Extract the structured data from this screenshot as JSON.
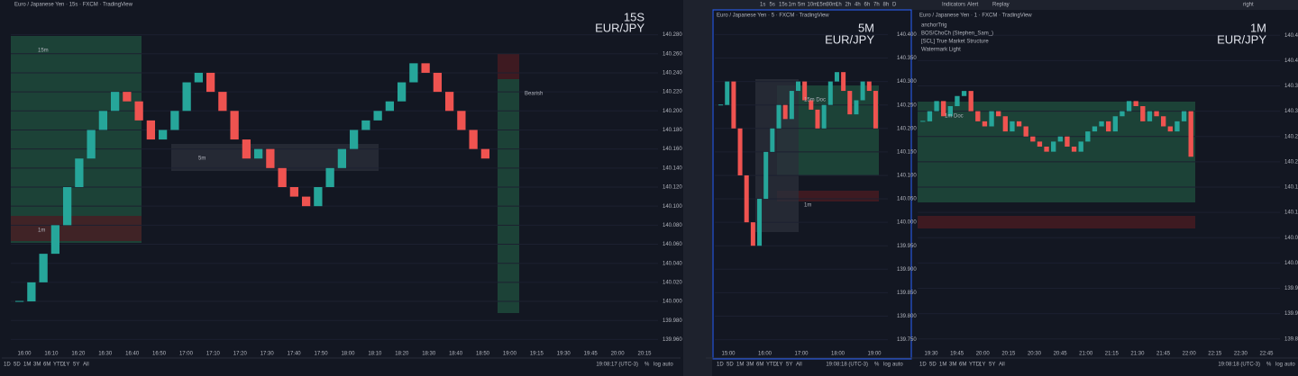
{
  "panes": [
    {
      "title": "Euro / Japanese Yen · 15s · FXCM · TradingView",
      "watermark_tf": "15S",
      "watermark_symbol": "EUR/JPY",
      "ylim": [
        139.95,
        140.29
      ],
      "price_ticks": [
        {
          "value": 140.28,
          "label": "140.280"
        },
        {
          "value": 140.26,
          "label": "140.260"
        },
        {
          "value": 140.24,
          "label": "140.240"
        },
        {
          "value": 140.22,
          "label": "140.220"
        },
        {
          "value": 140.2,
          "label": "140.200"
        },
        {
          "value": 140.18,
          "label": "140.180"
        },
        {
          "value": 140.16,
          "label": "140.160"
        },
        {
          "value": 140.14,
          "label": "140.140"
        },
        {
          "value": 140.12,
          "label": "140.120"
        },
        {
          "value": 140.1,
          "label": "140.100"
        },
        {
          "value": 140.08,
          "label": "140.080"
        },
        {
          "value": 140.06,
          "label": "140.060"
        },
        {
          "value": 140.04,
          "label": "140.040"
        },
        {
          "value": 140.02,
          "label": "140.020"
        },
        {
          "value": 140,
          "label": "140.000"
        },
        {
          "value": 139.98,
          "label": "139.980"
        },
        {
          "value": 139.96,
          "label": "139.960"
        }
      ],
      "time_labels": [
        "16:00",
        "16:10",
        "16:20",
        "16:30",
        "16:40",
        "16:50",
        "17:00",
        "17:10",
        "17:20",
        "17:30",
        "17:40",
        "17:50",
        "18:00",
        "18:10",
        "18:20",
        "18:30",
        "18:40",
        "18:50",
        "19:00",
        "19:15",
        "19:30",
        "19:45",
        "20:00",
        "20:15"
      ],
      "closes": [
        140.0,
        140.02,
        140.05,
        140.08,
        140.12,
        140.15,
        140.18,
        140.2,
        140.22,
        140.21,
        140.19,
        140.17,
        140.18,
        140.2,
        140.23,
        140.24,
        140.22,
        140.2,
        140.17,
        140.15,
        140.16,
        140.14,
        140.12,
        140.11,
        140.1,
        140.12,
        140.14,
        140.16,
        140.18,
        140.19,
        140.2,
        140.21,
        140.23,
        140.25,
        140.24,
        140.22,
        140.2,
        140.18,
        140.16,
        140.15
      ],
      "clock": "19:08:17 (UTC-3)",
      "zone_labels": [
        "15m",
        "1m",
        "5m",
        "Bearish"
      ]
    },
    {
      "title": "Euro / Japanese Yen · 5 · FXCM · TradingView",
      "watermark_tf": "5M",
      "watermark_symbol": "EUR/JPY",
      "ylim": [
        139.73,
        140.42
      ],
      "price_ticks": [
        {
          "value": 140.4,
          "label": "140.400"
        },
        {
          "value": 140.35,
          "label": "140.350"
        },
        {
          "value": 140.3,
          "label": "140.300"
        },
        {
          "value": 140.25,
          "label": "140.250"
        },
        {
          "value": 140.2,
          "label": "140.200"
        },
        {
          "value": 140.15,
          "label": "140.150"
        },
        {
          "value": 140.1,
          "label": "140.100"
        },
        {
          "value": 140.05,
          "label": "140.050"
        },
        {
          "value": 140,
          "label": "140.000"
        },
        {
          "value": 139.95,
          "label": "139.950"
        },
        {
          "value": 139.9,
          "label": "139.900"
        },
        {
          "value": 139.85,
          "label": "139.850"
        },
        {
          "value": 139.8,
          "label": "139.800"
        },
        {
          "value": 139.75,
          "label": "139.750"
        }
      ],
      "time_labels": [
        "15:00",
        "16:00",
        "17:00",
        "18:00",
        "19:00"
      ],
      "closes": [
        140.25,
        140.3,
        140.2,
        140.1,
        140.0,
        139.95,
        140.05,
        140.15,
        140.2,
        140.25,
        140.22,
        140.28,
        140.3,
        140.26,
        140.24,
        140.2,
        140.25,
        140.3,
        140.32,
        140.28,
        140.23,
        140.26,
        140.3,
        140.28,
        140.2
      ],
      "clock": "19:08:18 (UTC-3)",
      "zone_labels": [
        "15m Doc",
        "1m"
      ]
    },
    {
      "title": "Euro / Japanese Yen · 1 · FXCM · TradingView",
      "watermark_tf": "1M",
      "watermark_symbol": "EUR/JPY",
      "ylim": [
        139.83,
        140.47
      ],
      "price_ticks": [
        {
          "value": 140.45,
          "label": "140.450"
        },
        {
          "value": 140.4,
          "label": "140.400"
        },
        {
          "value": 140.35,
          "label": "140.350"
        },
        {
          "value": 140.3,
          "label": "140.300"
        },
        {
          "value": 140.25,
          "label": "140.250"
        },
        {
          "value": 140.2,
          "label": "140.200"
        },
        {
          "value": 140.15,
          "label": "140.150"
        },
        {
          "value": 140.1,
          "label": "140.100"
        },
        {
          "value": 140.05,
          "label": "140.050"
        },
        {
          "value": 140,
          "label": "140.000"
        },
        {
          "value": 139.95,
          "label": "139.950"
        },
        {
          "value": 139.9,
          "label": "139.900"
        },
        {
          "value": 139.85,
          "label": "139.850"
        }
      ],
      "time_labels": [
        "19:30",
        "19:45",
        "20:00",
        "20:15",
        "20:30",
        "20:45",
        "21:00",
        "21:15",
        "21:30",
        "21:45",
        "22:00",
        "22:15",
        "22:30",
        "22:45"
      ],
      "closes": [
        140.28,
        140.3,
        140.32,
        140.29,
        140.31,
        140.33,
        140.34,
        140.3,
        140.28,
        140.27,
        140.3,
        140.29,
        140.26,
        140.28,
        140.27,
        140.25,
        140.24,
        140.23,
        140.22,
        140.24,
        140.25,
        140.23,
        140.22,
        140.24,
        140.26,
        140.27,
        140.28,
        140.26,
        140.29,
        140.3,
        140.32,
        140.31,
        140.28,
        140.3,
        140.29,
        140.27,
        140.26,
        140.28,
        140.3,
        140.21
      ],
      "clock": "19:08:18 (UTC-3)",
      "zone_labels": [
        "1m Doc"
      ],
      "indicators": [
        "anchorTrig",
        "BOS/ChoCh (Stephen_Sam_)",
        "[SCL] True Market Structure",
        "Watermark Light"
      ]
    }
  ],
  "ranges": [
    "1D",
    "5D",
    "1M",
    "3M",
    "6M",
    "YTD",
    "1Y",
    "5Y",
    "All"
  ],
  "axis_buttons": [
    "%",
    "log",
    "auto"
  ],
  "intervals": [
    "1s",
    "5s",
    "15s",
    "1m",
    "5m",
    "10m",
    "15m",
    "30m",
    "1h",
    "2h",
    "4h",
    "6h",
    "7h",
    "8h",
    "D"
  ],
  "toolbar": [
    "Indicators",
    "Alert",
    "Replay",
    "right"
  ]
}
